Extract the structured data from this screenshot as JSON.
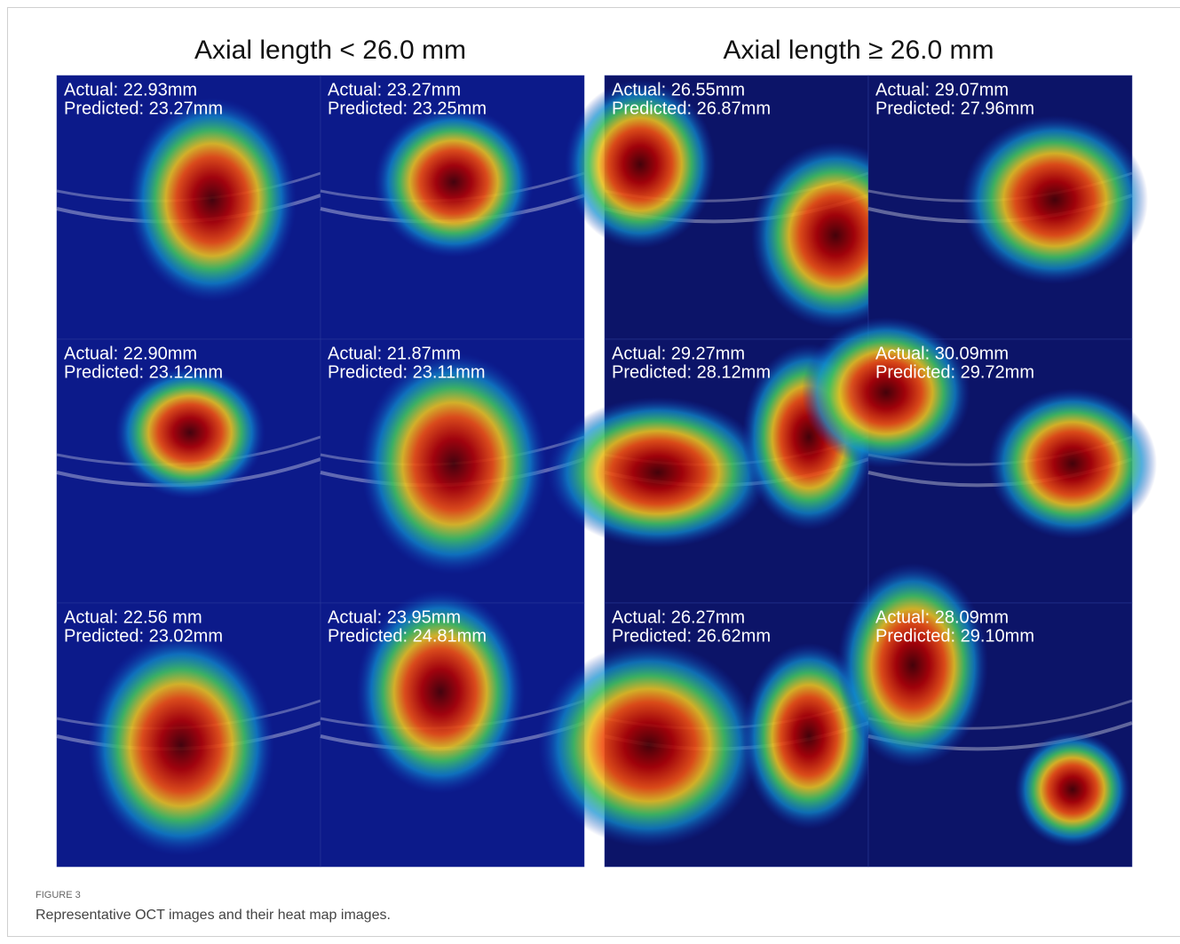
{
  "groups": [
    {
      "title": "Axial length < 26.0 mm",
      "panels": [
        {
          "actual": "Actual: 22.93mm",
          "predicted": "Predicted: 23.27mm"
        },
        {
          "actual": "Actual: 23.27mm",
          "predicted": "Predicted: 23.25mm"
        },
        {
          "actual": "Actual: 22.90mm",
          "predicted": "Predicted: 23.12mm"
        },
        {
          "actual": "Actual: 21.87mm",
          "predicted": "Predicted: 23.11mm"
        },
        {
          "actual": "Actual: 22.56 mm",
          "predicted": "Predicted: 23.02mm"
        },
        {
          "actual": "Actual: 23.95mm",
          "predicted": "Predicted: 24.81mm"
        }
      ]
    },
    {
      "title": "Axial length ≥ 26.0 mm",
      "panels": [
        {
          "actual": "Actual: 26.55mm",
          "predicted": "Predicted: 26.87mm"
        },
        {
          "actual": "Actual: 29.07mm",
          "predicted": "Predicted: 27.96mm"
        },
        {
          "actual": "Actual: 29.27mm",
          "predicted": "Predicted: 28.12mm"
        },
        {
          "actual": "Actual: 30.09mm",
          "predicted": "Predicted: 29.72mm"
        },
        {
          "actual": "Actual: 26.27mm",
          "predicted": "Predicted: 26.62mm"
        },
        {
          "actual": "Actual: 28.09mm",
          "predicted": "Predicted: 29.10mm"
        }
      ]
    }
  ],
  "caption": {
    "label": "FIGURE 3",
    "text": "Representative OCT images and their heat map images."
  }
}
